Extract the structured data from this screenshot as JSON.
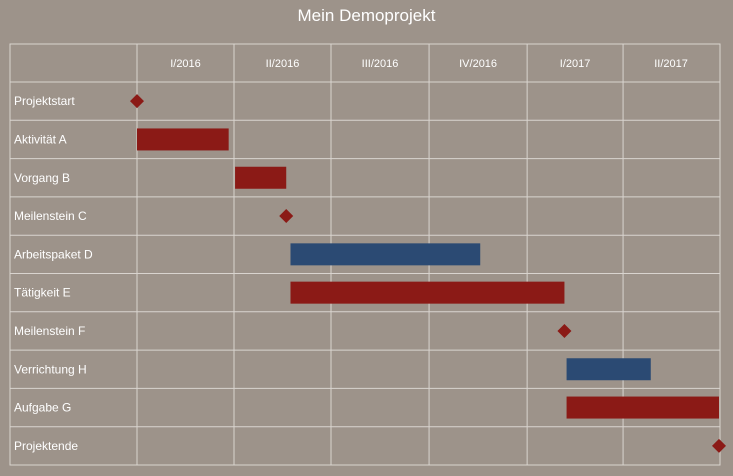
{
  "chart_data": {
    "type": "gantt",
    "title": "Mein Demoprojekt",
    "colors": {
      "background": "#9d938a",
      "grid": "#d9d4cf",
      "task_red": "#8b1a16",
      "task_blue": "#2b4a73",
      "milestone": "#8b1a16",
      "text": "#ffffff"
    },
    "quarters": [
      "I/2016",
      "II/2016",
      "III/2016",
      "IV/2016",
      "I/2017",
      "II/2017"
    ],
    "rows": [
      {
        "label": "Projektstart",
        "kind": "milestone",
        "date": "2016-01-01",
        "color": "task_red"
      },
      {
        "label": "Aktivität A",
        "kind": "task",
        "start": "2016-01-01",
        "end": "2016-03-27",
        "color": "task_red"
      },
      {
        "label": "Vorgang B",
        "kind": "task",
        "start": "2016-04-02",
        "end": "2016-05-20",
        "color": "task_red"
      },
      {
        "label": "Meilenstein C",
        "kind": "milestone",
        "date": "2016-05-20",
        "color": "task_red"
      },
      {
        "label": "Arbeitspaket D",
        "kind": "task",
        "start": "2016-05-24",
        "end": "2016-11-18",
        "color": "task_blue"
      },
      {
        "label": "Tätigkeit E",
        "kind": "task",
        "start": "2016-05-24",
        "end": "2017-02-05",
        "color": "task_red"
      },
      {
        "label": "Meilenstein F",
        "kind": "milestone",
        "date": "2017-02-05",
        "color": "task_red"
      },
      {
        "label": "Verrichtung H",
        "kind": "task",
        "start": "2017-02-07",
        "end": "2017-04-27",
        "color": "task_blue"
      },
      {
        "label": "Aufgabe G",
        "kind": "task",
        "start": "2017-02-07",
        "end": "2017-06-30",
        "color": "task_red"
      },
      {
        "label": "Projektende",
        "kind": "milestone",
        "date": "2017-06-30",
        "color": "task_red"
      }
    ],
    "xlim": [
      "2016-01-01",
      "2017-06-30"
    ],
    "grid": true,
    "legend": "none"
  }
}
